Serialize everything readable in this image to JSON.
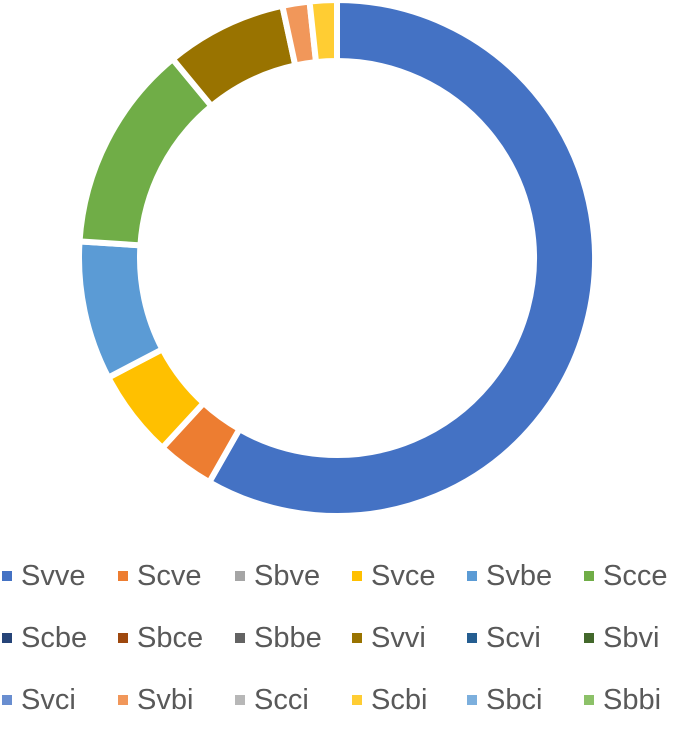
{
  "chart_data": {
    "type": "pie",
    "subtype": "doughnut",
    "title": "",
    "categories": [
      "Svve",
      "Scve",
      "Sbve",
      "Svce",
      "Svbe",
      "Scce",
      "Scbe",
      "Sbce",
      "Sbbe",
      "Svvi",
      "Scvi",
      "Sbvi",
      "Svci",
      "Svbi",
      "Scci",
      "Scbi",
      "Sbci",
      "Sbbi"
    ],
    "values": [
      58.3,
      3.6,
      0,
      5.5,
      8.7,
      13.0,
      0,
      0,
      0,
      7.6,
      0,
      0,
      0,
      1.7,
      0,
      1.7,
      0,
      0
    ],
    "unit": "percent (estimated from arc angles)",
    "colors": [
      "#4472C4",
      "#ED7D31",
      "#A5A5A5",
      "#FFC000",
      "#5B9BD5",
      "#70AD47",
      "#264478",
      "#9E480E",
      "#636363",
      "#997300",
      "#255E91",
      "#43682B",
      "#698ED0",
      "#F1975A",
      "#B7B7B7",
      "#FFCD33",
      "#7CAFDD",
      "#8CC168"
    ],
    "start_angle_deg": 0,
    "direction": "clockwise",
    "legend_position": "bottom",
    "data_labels": false
  },
  "legend": {
    "rows": [
      [
        {
          "label": "Svve",
          "color": "#4472C4"
        },
        {
          "label": "Scve",
          "color": "#ED7D31"
        },
        {
          "label": "Sbve",
          "color": "#A5A5A5"
        },
        {
          "label": "Svce",
          "color": "#FFC000"
        },
        {
          "label": "Svbe",
          "color": "#5B9BD5"
        },
        {
          "label": "Scce",
          "color": "#70AD47"
        }
      ],
      [
        {
          "label": "Scbe",
          "color": "#264478"
        },
        {
          "label": "Sbce",
          "color": "#9E480E"
        },
        {
          "label": "Sbbe",
          "color": "#636363"
        },
        {
          "label": "Svvi",
          "color": "#997300"
        },
        {
          "label": "Scvi",
          "color": "#255E91"
        },
        {
          "label": "Sbvi",
          "color": "#43682B"
        }
      ],
      [
        {
          "label": "Svci",
          "color": "#698ED0"
        },
        {
          "label": "Svbi",
          "color": "#F1975A"
        },
        {
          "label": "Scci",
          "color": "#B7B7B7"
        },
        {
          "label": "Scbi",
          "color": "#FFCD33"
        },
        {
          "label": "Sbci",
          "color": "#7CAFDD"
        },
        {
          "label": "Sbbi",
          "color": "#8CC168"
        }
      ]
    ]
  }
}
